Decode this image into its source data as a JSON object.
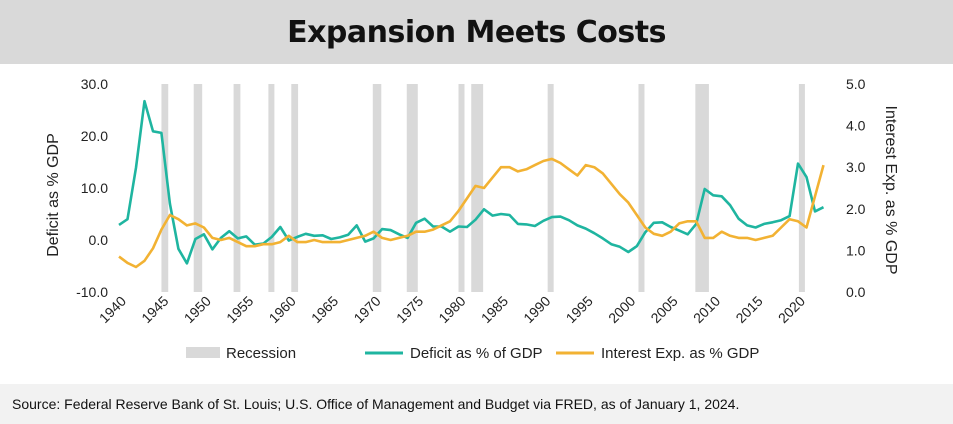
{
  "title": "Expansion Meets Costs",
  "source": "Source: Federal Reserve Bank of St. Louis; U.S. Office of Management and Budget via FRED, as of January 1, 2024.",
  "colors": {
    "deficit": "#1fb5a0",
    "interest": "#f2b233",
    "recession": "#d9d9d9"
  },
  "chart_data": {
    "type": "line",
    "xlabel": "",
    "ylabel": "Deficit as % GDP",
    "y2label": "Interest Exp. as % GDP",
    "xlim": [
      1940,
      2024
    ],
    "ylim": [
      -10,
      30
    ],
    "y2lim": [
      0,
      5
    ],
    "x_ticks": [
      "1940",
      "1945",
      "1950",
      "1955",
      "1960",
      "1965",
      "1970",
      "1975",
      "1980",
      "1985",
      "1990",
      "1995",
      "2000",
      "2005",
      "2010",
      "2015",
      "2020"
    ],
    "y_ticks": [
      "30.0",
      "20.0",
      "10.0",
      "0.0",
      "-10.0"
    ],
    "y2_ticks": [
      "5.0",
      "4.0",
      "3.0",
      "2.0",
      "1.0",
      "0.0"
    ],
    "legend": [
      "Recession",
      "Deficit as % of GDP",
      "Interest Exp. as % GDP"
    ],
    "legend_position": "bottom",
    "recessions": [
      [
        1945,
        1945.8
      ],
      [
        1948.8,
        1949.8
      ],
      [
        1953.5,
        1954.3
      ],
      [
        1957.6,
        1958.3
      ],
      [
        1960.3,
        1961.1
      ],
      [
        1969.9,
        1970.9
      ],
      [
        1973.9,
        1975.2
      ],
      [
        1980,
        1980.5
      ],
      [
        1981.5,
        1982.9
      ],
      [
        1990.5,
        1991.2
      ],
      [
        2001.2,
        2001.9
      ],
      [
        2007.9,
        2009.5
      ],
      [
        2020.1,
        2020.4
      ]
    ],
    "series": [
      {
        "name": "Deficit as % of GDP",
        "x": [
          1940,
          1941,
          1942,
          1943,
          1944,
          1945,
          1946,
          1947,
          1948,
          1949,
          1950,
          1951,
          1952,
          1953,
          1954,
          1955,
          1956,
          1957,
          1958,
          1959,
          1960,
          1961,
          1962,
          1963,
          1964,
          1965,
          1966,
          1967,
          1968,
          1969,
          1970,
          1971,
          1972,
          1973,
          1974,
          1975,
          1976,
          1977,
          1978,
          1979,
          1980,
          1981,
          1982,
          1983,
          1984,
          1985,
          1986,
          1987,
          1988,
          1989,
          1990,
          1991,
          1992,
          1993,
          1994,
          1995,
          1996,
          1997,
          1998,
          1999,
          2000,
          2001,
          2002,
          2003,
          2004,
          2005,
          2006,
          2007,
          2008,
          2009,
          2010,
          2011,
          2012,
          2013,
          2014,
          2015,
          2016,
          2017,
          2018,
          2019,
          2020,
          2021,
          2022,
          2023
        ],
        "values": [
          2.9,
          4.0,
          13.9,
          26.7,
          20.9,
          20.6,
          7.0,
          -1.7,
          -4.5,
          0.2,
          1.1,
          -1.8,
          0.4,
          1.7,
          0.3,
          0.7,
          -0.9,
          -0.7,
          0.6,
          2.5,
          -0.1,
          0.6,
          1.2,
          0.8,
          0.9,
          0.2,
          0.5,
          1.0,
          2.8,
          -0.3,
          0.3,
          2.1,
          1.9,
          1.1,
          0.4,
          3.3,
          4.1,
          2.6,
          2.6,
          1.6,
          2.6,
          2.5,
          3.9,
          5.9,
          4.7,
          5.0,
          4.8,
          3.1,
          3.0,
          2.7,
          3.7,
          4.4,
          4.5,
          3.8,
          2.8,
          2.2,
          1.3,
          0.3,
          -0.8,
          -1.3,
          -2.3,
          -1.2,
          1.5,
          3.3,
          3.4,
          2.5,
          1.8,
          1.1,
          3.1,
          9.8,
          8.6,
          8.4,
          6.7,
          4.1,
          2.8,
          2.4,
          3.1,
          3.4,
          3.8,
          4.6,
          14.7,
          12.1,
          5.5,
          6.3
        ]
      },
      {
        "name": "Interest Exp. as % GDP",
        "x": [
          1940,
          1941,
          1942,
          1943,
          1944,
          1945,
          1946,
          1947,
          1948,
          1949,
          1950,
          1951,
          1952,
          1953,
          1954,
          1955,
          1956,
          1957,
          1958,
          1959,
          1960,
          1961,
          1962,
          1963,
          1964,
          1965,
          1966,
          1967,
          1968,
          1969,
          1970,
          1971,
          1972,
          1973,
          1974,
          1975,
          1976,
          1977,
          1978,
          1979,
          1980,
          1981,
          1982,
          1983,
          1984,
          1985,
          1986,
          1987,
          1988,
          1989,
          1990,
          1991,
          1992,
          1993,
          1994,
          1995,
          1996,
          1997,
          1998,
          1999,
          2000,
          2001,
          2002,
          2003,
          2004,
          2005,
          2006,
          2007,
          2008,
          2009,
          2010,
          2011,
          2012,
          2013,
          2014,
          2015,
          2016,
          2017,
          2018,
          2019,
          2020,
          2021,
          2022,
          2023
        ],
        "values": [
          0.85,
          0.7,
          0.6,
          0.75,
          1.05,
          1.5,
          1.85,
          1.75,
          1.6,
          1.65,
          1.55,
          1.3,
          1.25,
          1.3,
          1.2,
          1.1,
          1.1,
          1.15,
          1.15,
          1.2,
          1.35,
          1.2,
          1.2,
          1.25,
          1.2,
          1.2,
          1.2,
          1.25,
          1.3,
          1.35,
          1.45,
          1.3,
          1.25,
          1.3,
          1.35,
          1.45,
          1.45,
          1.5,
          1.6,
          1.7,
          1.95,
          2.25,
          2.55,
          2.5,
          2.75,
          3.0,
          3.0,
          2.9,
          2.95,
          3.05,
          3.15,
          3.2,
          3.1,
          2.95,
          2.8,
          3.05,
          3.0,
          2.85,
          2.6,
          2.35,
          2.15,
          1.85,
          1.55,
          1.4,
          1.35,
          1.45,
          1.65,
          1.7,
          1.7,
          1.3,
          1.3,
          1.45,
          1.35,
          1.3,
          1.3,
          1.25,
          1.3,
          1.35,
          1.55,
          1.75,
          1.7,
          1.55,
          2.3,
          3.05
        ]
      }
    ]
  }
}
